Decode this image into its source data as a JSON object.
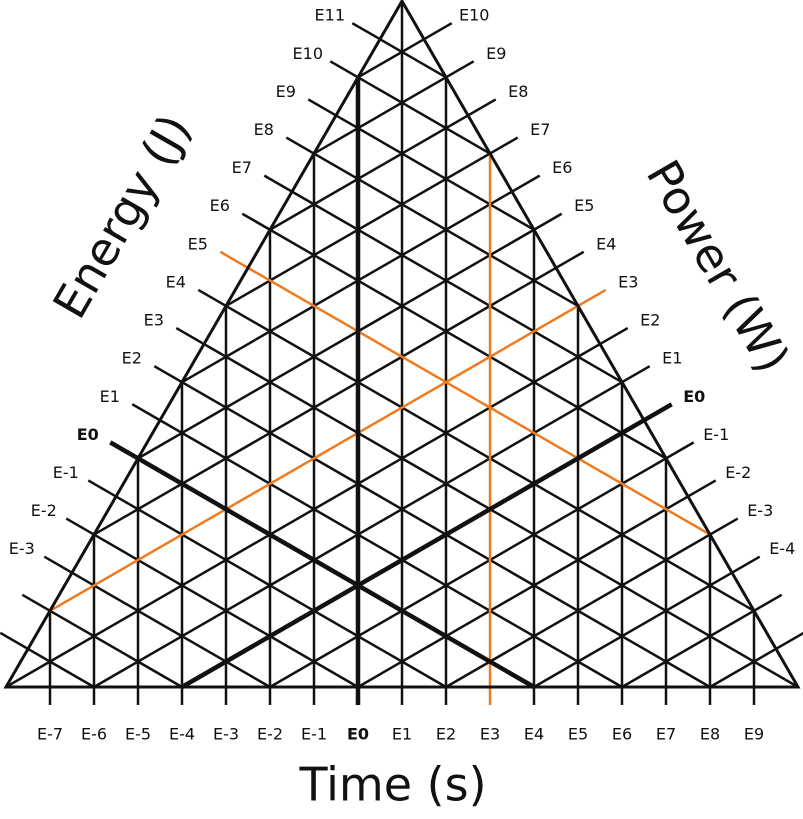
{
  "axes": {
    "time": {
      "title": "Time (s)",
      "labels": [
        "E-7",
        "E-6",
        "E-5",
        "E-4",
        "E-3",
        "E-2",
        "E-1",
        "E0",
        "E1",
        "E2",
        "E3",
        "E4",
        "E5",
        "E6",
        "E7",
        "E8",
        "E9"
      ]
    },
    "energy": {
      "title": "Energy (J)",
      "labels": [
        "E11",
        "E10",
        "E9",
        "E8",
        "E7",
        "E6",
        "E5",
        "E4",
        "E3",
        "E2",
        "E1",
        "E0",
        "E-1",
        "E-2",
        "E-3"
      ]
    },
    "power": {
      "title": "Power (W)",
      "labels": [
        "E10",
        "E9",
        "E8",
        "E7",
        "E6",
        "E5",
        "E4",
        "E3",
        "E2",
        "E1",
        "E0",
        "E-1",
        "E-2",
        "E-3",
        "E-4"
      ]
    }
  }
}
